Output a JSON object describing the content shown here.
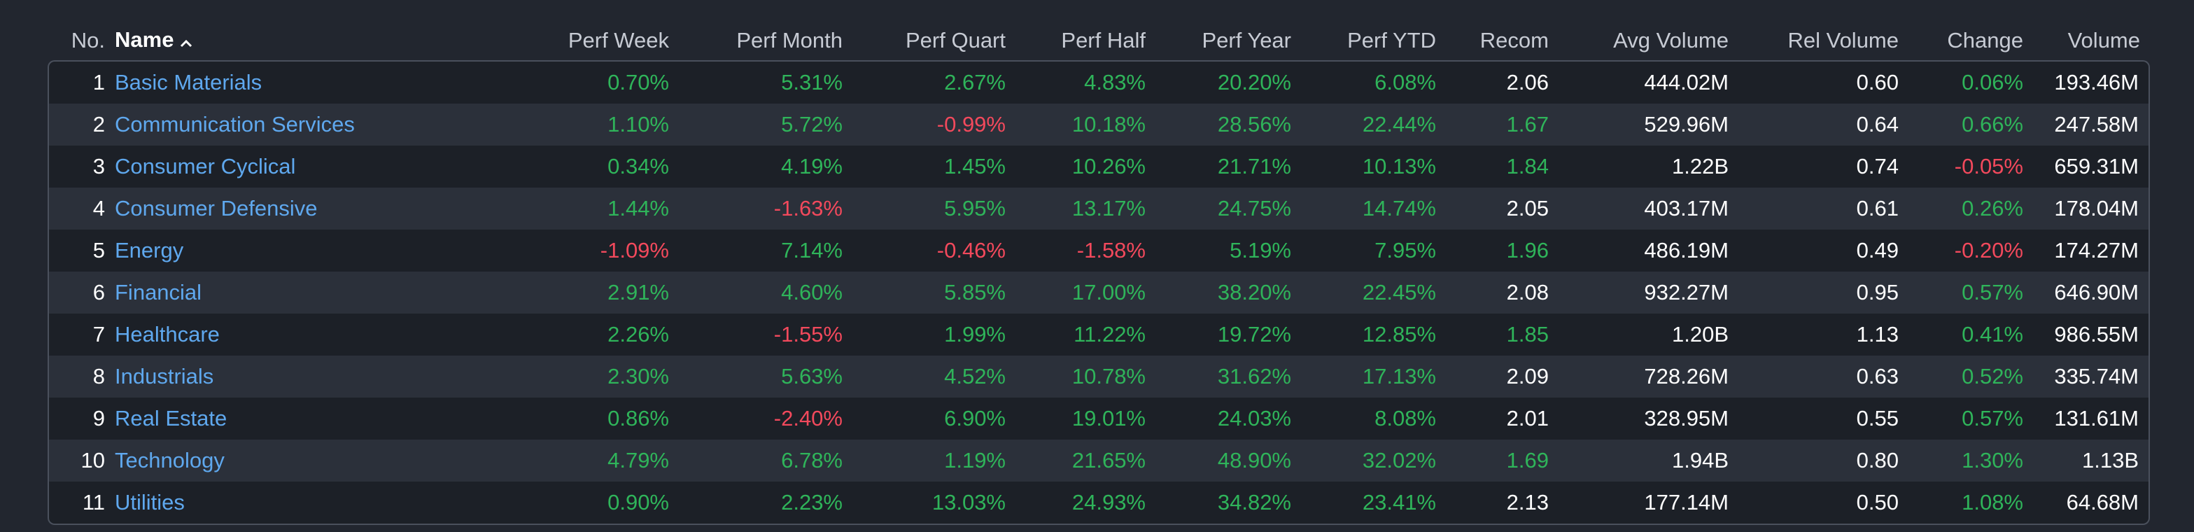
{
  "colors": {
    "positive": "#2fb45a",
    "negative": "#f2495c",
    "link": "#5fa8ee",
    "background": "#22262f"
  },
  "header": {
    "no": "No.",
    "name": "Name",
    "perf_week": "Perf Week",
    "perf_month": "Perf Month",
    "perf_quart": "Perf Quart",
    "perf_half": "Perf Half",
    "perf_year": "Perf Year",
    "perf_ytd": "Perf YTD",
    "recom": "Recom",
    "avg_volume": "Avg Volume",
    "rel_volume": "Rel Volume",
    "change": "Change",
    "volume": "Volume",
    "sort_icon": "chevron-up-icon"
  },
  "rows": [
    {
      "no": "1",
      "name": "Basic Materials",
      "perf_week": "0.70%",
      "perf_month": "5.31%",
      "perf_quart": "2.67%",
      "perf_half": "4.83%",
      "perf_year": "20.20%",
      "perf_ytd": "6.08%",
      "recom": "2.06",
      "avg_volume": "444.02M",
      "rel_volume": "0.60",
      "change": "0.06%",
      "volume": "193.46M"
    },
    {
      "no": "2",
      "name": "Communication Services",
      "perf_week": "1.10%",
      "perf_month": "5.72%",
      "perf_quart": "-0.99%",
      "perf_half": "10.18%",
      "perf_year": "28.56%",
      "perf_ytd": "22.44%",
      "recom": "1.67",
      "avg_volume": "529.96M",
      "rel_volume": "0.64",
      "change": "0.66%",
      "volume": "247.58M"
    },
    {
      "no": "3",
      "name": "Consumer Cyclical",
      "perf_week": "0.34%",
      "perf_month": "4.19%",
      "perf_quart": "1.45%",
      "perf_half": "10.26%",
      "perf_year": "21.71%",
      "perf_ytd": "10.13%",
      "recom": "1.84",
      "avg_volume": "1.22B",
      "rel_volume": "0.74",
      "change": "-0.05%",
      "volume": "659.31M"
    },
    {
      "no": "4",
      "name": "Consumer Defensive",
      "perf_week": "1.44%",
      "perf_month": "-1.63%",
      "perf_quart": "5.95%",
      "perf_half": "13.17%",
      "perf_year": "24.75%",
      "perf_ytd": "14.74%",
      "recom": "2.05",
      "avg_volume": "403.17M",
      "rel_volume": "0.61",
      "change": "0.26%",
      "volume": "178.04M"
    },
    {
      "no": "5",
      "name": "Energy",
      "perf_week": "-1.09%",
      "perf_month": "7.14%",
      "perf_quart": "-0.46%",
      "perf_half": "-1.58%",
      "perf_year": "5.19%",
      "perf_ytd": "7.95%",
      "recom": "1.96",
      "avg_volume": "486.19M",
      "rel_volume": "0.49",
      "change": "-0.20%",
      "volume": "174.27M"
    },
    {
      "no": "6",
      "name": "Financial",
      "perf_week": "2.91%",
      "perf_month": "4.60%",
      "perf_quart": "5.85%",
      "perf_half": "17.00%",
      "perf_year": "38.20%",
      "perf_ytd": "22.45%",
      "recom": "2.08",
      "avg_volume": "932.27M",
      "rel_volume": "0.95",
      "change": "0.57%",
      "volume": "646.90M"
    },
    {
      "no": "7",
      "name": "Healthcare",
      "perf_week": "2.26%",
      "perf_month": "-1.55%",
      "perf_quart": "1.99%",
      "perf_half": "11.22%",
      "perf_year": "19.72%",
      "perf_ytd": "12.85%",
      "recom": "1.85",
      "avg_volume": "1.20B",
      "rel_volume": "1.13",
      "change": "0.41%",
      "volume": "986.55M"
    },
    {
      "no": "8",
      "name": "Industrials",
      "perf_week": "2.30%",
      "perf_month": "5.63%",
      "perf_quart": "4.52%",
      "perf_half": "10.78%",
      "perf_year": "31.62%",
      "perf_ytd": "17.13%",
      "recom": "2.09",
      "avg_volume": "728.26M",
      "rel_volume": "0.63",
      "change": "0.52%",
      "volume": "335.74M"
    },
    {
      "no": "9",
      "name": "Real Estate",
      "perf_week": "0.86%",
      "perf_month": "-2.40%",
      "perf_quart": "6.90%",
      "perf_half": "19.01%",
      "perf_year": "24.03%",
      "perf_ytd": "8.08%",
      "recom": "2.01",
      "avg_volume": "328.95M",
      "rel_volume": "0.55",
      "change": "0.57%",
      "volume": "131.61M"
    },
    {
      "no": "10",
      "name": "Technology",
      "perf_week": "4.79%",
      "perf_month": "6.78%",
      "perf_quart": "1.19%",
      "perf_half": "21.65%",
      "perf_year": "48.90%",
      "perf_ytd": "32.02%",
      "recom": "1.69",
      "avg_volume": "1.94B",
      "rel_volume": "0.80",
      "change": "1.30%",
      "volume": "1.13B"
    },
    {
      "no": "11",
      "name": "Utilities",
      "perf_week": "0.90%",
      "perf_month": "2.23%",
      "perf_quart": "13.03%",
      "perf_half": "24.93%",
      "perf_year": "34.82%",
      "perf_ytd": "23.41%",
      "recom": "2.13",
      "avg_volume": "177.14M",
      "rel_volume": "0.50",
      "change": "1.08%",
      "volume": "64.68M"
    }
  ]
}
